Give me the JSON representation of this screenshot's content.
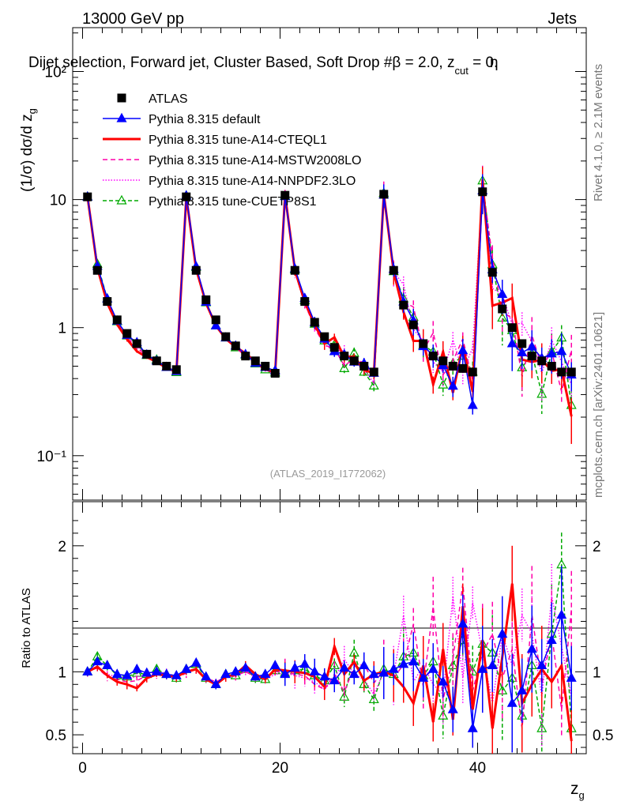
{
  "header": {
    "left": "13000 GeV pp",
    "right": "Jets"
  },
  "chart_data": {
    "type": "line",
    "title": "Dijet selection, Forward jet, Cluster Based, Soft Drop #β = 2.0, z",
    "title_sub": "cut",
    "title_tail": " = 0.",
    "title_overlap": "η",
    "xlabel": "z",
    "xlabel_sub": "g",
    "ylabel": "(1/σ) dσ/d z",
    "ylabel_sub": "g",
    "ratio_ylabel": "Ratio to ATLAS",
    "analysis_id": "(ATLAS_2019_I1772062)",
    "side_note_1": "Rivet 4.1.0, ≥ 2.1M events",
    "side_note_2": "mcplots.cern.ch [arXiv:2401.10621]",
    "xlim": [
      -1,
      51
    ],
    "ylim": [
      0.045,
      220
    ],
    "ratio_ylim": [
      0.35,
      2.35
    ],
    "x_ticks": [
      "0",
      "20",
      "40"
    ],
    "y_ticks": [
      "10⁻¹",
      "1",
      "10",
      "10²"
    ],
    "ratio_ticks": [
      "0.5",
      "1",
      "2"
    ],
    "x": [
      0.5,
      1.5,
      2.5,
      3.5,
      4.5,
      5.5,
      6.5,
      7.5,
      8.5,
      9.5,
      10.5,
      11.5,
      12.5,
      13.5,
      14.5,
      15.5,
      16.5,
      17.5,
      18.5,
      19.5,
      20.5,
      21.5,
      22.5,
      23.5,
      24.5,
      25.5,
      26.5,
      27.5,
      28.5,
      29.5,
      30.5,
      31.5,
      32.5,
      33.5,
      34.5,
      35.5,
      36.5,
      37.5,
      38.5,
      39.5,
      40.5,
      41.5,
      42.5,
      43.5,
      44.5,
      45.5,
      46.5,
      47.5,
      48.5,
      49.5
    ],
    "series": [
      {
        "name": "ATLAS",
        "color": "#000000",
        "dash": "none",
        "marker": "square",
        "values": [
          10.5,
          2.8,
          1.6,
          1.15,
          0.9,
          0.75,
          0.62,
          0.55,
          0.5,
          0.47,
          10.5,
          2.8,
          1.65,
          1.15,
          0.85,
          0.72,
          0.6,
          0.55,
          0.5,
          0.44,
          10.8,
          2.8,
          1.6,
          1.1,
          0.85,
          0.7,
          0.6,
          0.55,
          0.5,
          0.45,
          11.0,
          2.8,
          1.5,
          1.05,
          0.75,
          0.6,
          0.55,
          0.5,
          0.48,
          0.45,
          11.5,
          2.7,
          1.4,
          1.0,
          0.75,
          0.6,
          0.55,
          0.5,
          0.45,
          0.45
        ],
        "ratio": [
          1,
          1,
          1,
          1,
          1,
          1,
          1,
          1,
          1,
          1,
          1,
          1,
          1,
          1,
          1,
          1,
          1,
          1,
          1,
          1,
          1,
          1,
          1,
          1,
          1,
          1,
          1,
          1,
          1,
          1,
          1,
          1,
          1,
          1,
          1,
          1,
          1,
          1,
          1,
          1,
          1,
          1,
          1,
          1,
          1,
          1,
          1,
          1,
          1,
          1
        ]
      },
      {
        "name": "Pythia 8.315 default",
        "color": "#0000ff",
        "dash": "none",
        "marker": "triangle-filled",
        "ratio": [
          1.0,
          1.08,
          1.05,
          0.98,
          0.97,
          1.02,
          0.99,
          1.0,
          0.98,
          0.97,
          1.02,
          1.07,
          0.96,
          0.9,
          0.98,
          1.0,
          1.03,
          0.96,
          0.98,
          1.05,
          0.98,
          1.03,
          1.06,
          1.0,
          0.96,
          0.93,
          1.03,
          0.98,
          1.05,
          0.98,
          0.99,
          1.02,
          1.06,
          1.08,
          0.95,
          1.02,
          0.92,
          0.7,
          1.38,
          0.55,
          1.02,
          1.05,
          1.3,
          0.75,
          0.85,
          1.18,
          1.05,
          1.25,
          1.45,
          0.95
        ]
      },
      {
        "name": "Pythia 8.315 tune-A14-CTEQL1",
        "color": "#ff0000",
        "dash": "none",
        "marker": "none",
        "ratio": [
          1.0,
          1.04,
          0.97,
          0.92,
          0.9,
          0.87,
          0.95,
          0.98,
          0.97,
          0.96,
          1.0,
          1.02,
          0.94,
          0.9,
          0.96,
          0.98,
          1.05,
          0.98,
          0.94,
          1.02,
          1.01,
          1.0,
          0.99,
          0.96,
          0.88,
          1.2,
          0.98,
          1.08,
          0.93,
          0.98,
          1.0,
          0.97,
          0.88,
          0.75,
          1.05,
          0.6,
          1.18,
          0.62,
          1.52,
          0.7,
          1.25,
          0.55,
          1.12,
          1.7,
          0.75,
          0.9,
          1.02,
          0.92,
          1.05,
          0.45
        ]
      },
      {
        "name": "Pythia 8.315 tune-A14-MSTW2008LO",
        "color": "#ff00aa",
        "dash": "6,4",
        "marker": "none",
        "ratio": [
          1.0,
          1.03,
          0.96,
          0.94,
          0.92,
          0.93,
          0.97,
          0.98,
          0.98,
          0.95,
          0.99,
          1.02,
          0.95,
          0.92,
          0.96,
          0.97,
          1.0,
          0.96,
          0.95,
          1.0,
          1.0,
          0.98,
          0.97,
          0.9,
          0.86,
          0.98,
          0.84,
          1.04,
          1.06,
          0.91,
          1.02,
          0.95,
          1.06,
          1.38,
          0.88,
          1.52,
          0.78,
          1.1,
          1.7,
          0.85,
          1.15,
          1.3,
          0.95,
          1.18,
          0.55,
          1.45,
          0.9,
          1.3,
          0.7,
          1.5
        ]
      },
      {
        "name": "Pythia 8.315 tune-A14-NNPDF2.3LO",
        "color": "#ff00ff",
        "dash": "1.5,2",
        "marker": "none",
        "ratio": [
          1.0,
          1.04,
          0.98,
          0.96,
          0.95,
          0.96,
          0.97,
          1.0,
          0.99,
          0.96,
          1.0,
          1.02,
          0.94,
          0.91,
          0.97,
          0.96,
          1.01,
          0.95,
          0.94,
          0.98,
          0.99,
          0.97,
          0.95,
          0.92,
          0.86,
          0.95,
          1.1,
          0.98,
          0.94,
          0.82,
          1.0,
          0.97,
          1.45,
          0.92,
          1.05,
          0.9,
          0.82,
          1.6,
          0.95,
          1.55,
          1.15,
          0.75,
          1.3,
          1.05,
          1.45,
          1.3,
          0.8,
          1.6,
          1.2,
          0.8
        ]
      },
      {
        "name": "Pythia 8.315 tune-CUETP8S1",
        "color": "#00aa00",
        "dash": "5,3",
        "marker": "triangle-open",
        "ratio": [
          1.0,
          1.12,
          1.05,
          0.97,
          0.96,
          0.99,
          0.98,
          1.02,
          0.98,
          0.95,
          1.02,
          1.06,
          0.95,
          0.9,
          0.98,
          0.97,
          1.02,
          0.95,
          0.94,
          1.01,
          0.99,
          1.01,
          1.02,
          0.97,
          0.93,
          1.05,
          0.8,
          1.15,
          0.9,
          0.78,
          1.02,
          0.98,
          1.12,
          1.15,
          0.97,
          1.08,
          0.65,
          1.05,
          1.25,
          1.0,
          1.22,
          1.15,
          0.85,
          0.95,
          0.65,
          1.05,
          0.55,
          1.3,
          1.85,
          0.55
        ]
      }
    ]
  }
}
